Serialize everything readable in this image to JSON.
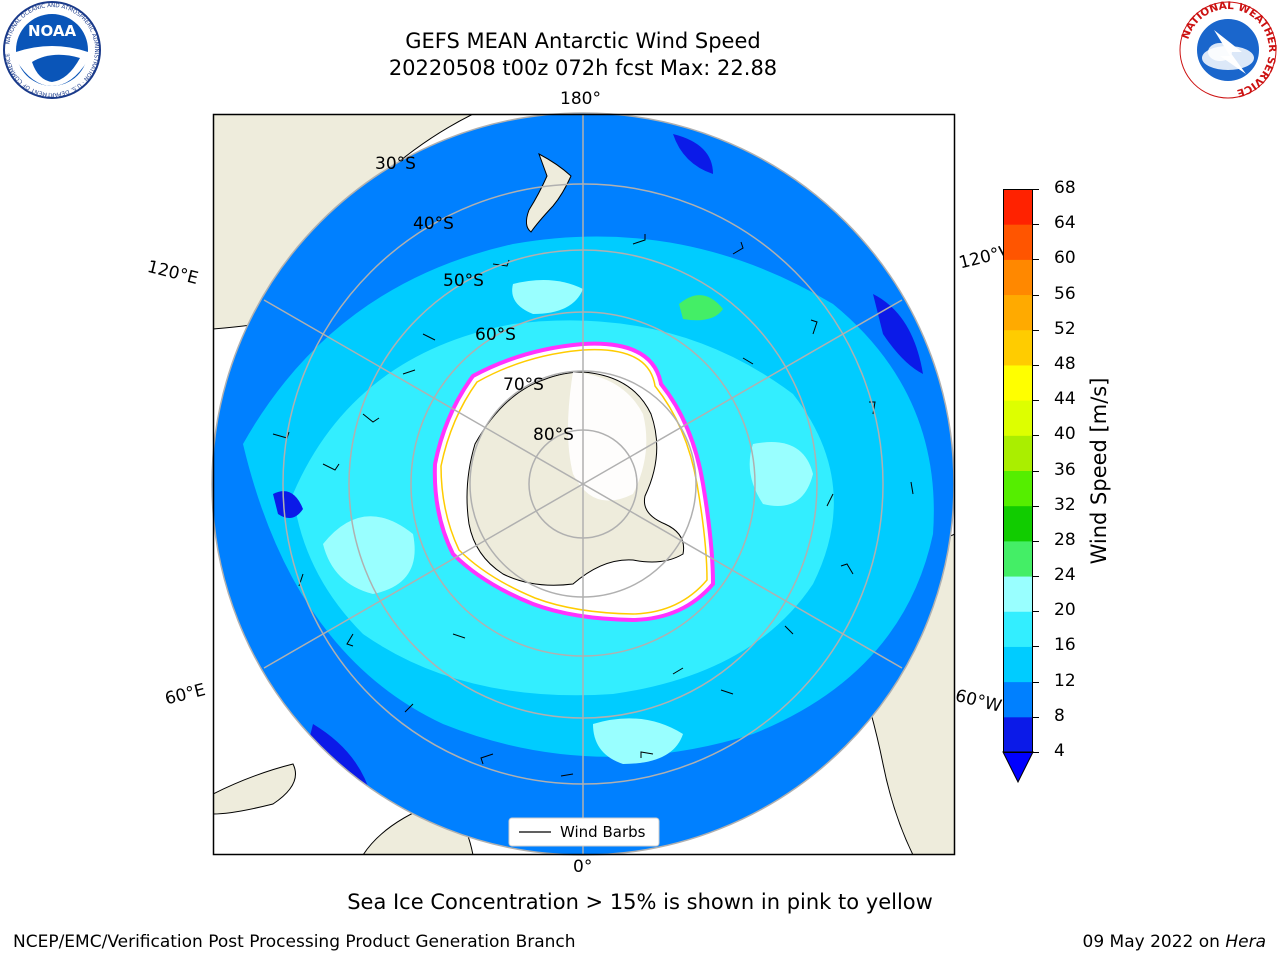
{
  "header": {
    "title_line1": "GEFS MEAN Antarctic Wind Speed",
    "title_line2": "20220508 t00z 072h fcst   Max: 22.88"
  },
  "logos": {
    "noaa_text": "NOAA",
    "noaa_ring_text": "NATIONAL OCEANIC AND ATMOSPHERIC ADMINISTRATION · U.S. DEPARTMENT OF COMMERCE",
    "nws_ring_text": "NATIONAL WEATHER SERVICE"
  },
  "map": {
    "projection": "south-polar-stereographic",
    "lon_labels": {
      "top": "180°",
      "bottom": "0°",
      "upper_left": "120°E",
      "upper_right": "120°W",
      "lower_left": "60°E",
      "lower_right": "60°W"
    },
    "lat_labels": [
      "30°S",
      "40°S",
      "50°S",
      "60°S",
      "70°S",
      "80°S"
    ],
    "legend_label": "Wind Barbs",
    "land_color": "#eeecdc",
    "ice_color": "#ffffff",
    "sea_ice_edge_colors": [
      "#ff33ff",
      "#ffcc00"
    ]
  },
  "colorbar": {
    "title": "Wind Speed [m/s]",
    "ticks": [
      "4",
      "8",
      "12",
      "16",
      "20",
      "24",
      "28",
      "32",
      "36",
      "40",
      "44",
      "48",
      "52",
      "56",
      "60",
      "64",
      "68"
    ],
    "colors": [
      "#0b1ae8",
      "#0080ff",
      "#00ccff",
      "#33eeff",
      "#99ffff",
      "#44ee66",
      "#11cc00",
      "#55ee00",
      "#aaee00",
      "#ddff00",
      "#ffff00",
      "#ffcc00",
      "#ffaa00",
      "#ff8800",
      "#ff5500",
      "#ff2200"
    ],
    "under_color": "#0000ff"
  },
  "caption": "Sea Ice Concentration > 15% is shown in pink to yellow",
  "footer": {
    "left": "NCEP/EMC/Verification Post Processing Product Generation Branch",
    "right_prefix": "09 May 2022 on ",
    "right_host": "Hera"
  }
}
